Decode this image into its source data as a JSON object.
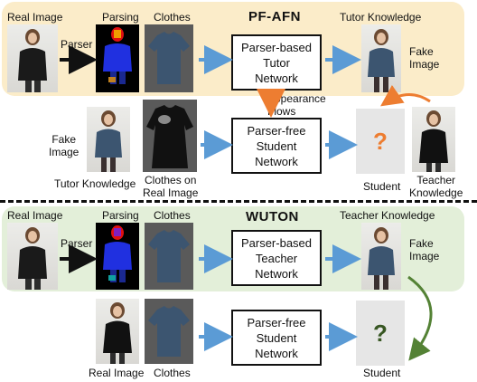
{
  "colors": {
    "top_band": "#fbecc9",
    "bottom_band": "#e3efd9",
    "arrow_blue": "#5b9bd5",
    "arrow_orange": "#ed7d31",
    "arrow_green": "#548235",
    "q_orange": "#ed7d31",
    "q_green": "#385723"
  },
  "pfafn": {
    "title": "PF-AFN",
    "real_image": "Real Image",
    "parser": "Parser",
    "parsing": "Parsing",
    "clothes": "Clothes",
    "tutor_knowledge_header": "Tutor Knowledge",
    "fake_image": "Fake\nImage",
    "tutor_network": "Parser-based\nTutor\nNetwork",
    "appearance_flows": "Appearance\nFlows",
    "student_network": "Parser-free\nStudent\nNetwork",
    "fake_image_left": "Fake\nImage",
    "tutor_knowledge_bottom": "Tutor Knowledge",
    "clothes_on_real": "Clothes on\nReal Image",
    "student": "Student",
    "teacher_knowledge": "Teacher\nKnowledge",
    "question": "?"
  },
  "wuton": {
    "title": "WUTON",
    "real_image": "Real Image",
    "parser": "Parser",
    "parsing": "Parsing",
    "clothes": "Clothes",
    "teacher_knowledge_header": "Teacher Knowledge",
    "fake_image": "Fake\nImage",
    "teacher_network": "Parser-based\nTeacher\nNetwork",
    "student_network": "Parser-free\nStudent\nNetwork",
    "real_image_bottom": "Real Image",
    "clothes_bottom": "Clothes",
    "student": "Student",
    "question": "?"
  }
}
